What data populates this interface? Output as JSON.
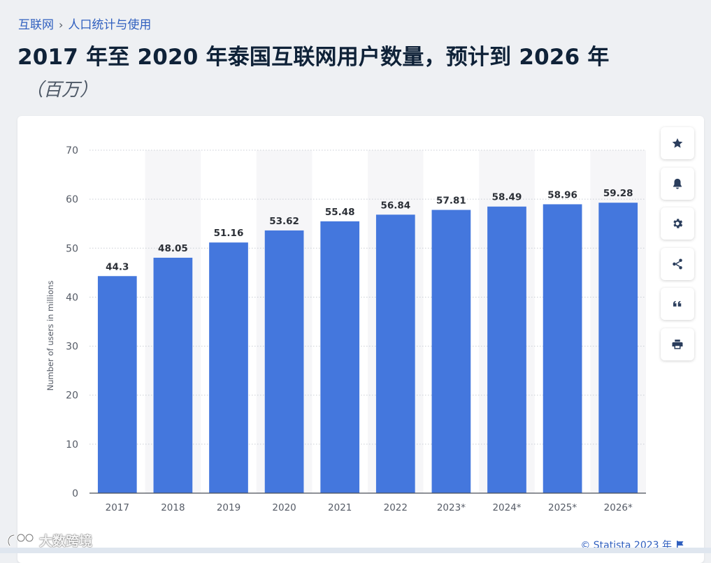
{
  "breadcrumb": {
    "items": [
      "互联网",
      "人口统计与使用"
    ],
    "separator": "›"
  },
  "header": {
    "title": "2017 年至 2020 年泰国互联网用户数量，预计到 2026 年",
    "subtitle": "（百万）"
  },
  "toolbar": {
    "buttons": [
      {
        "name": "favorite",
        "icon": "star-icon"
      },
      {
        "name": "notification",
        "icon": "bell-icon"
      },
      {
        "name": "settings",
        "icon": "gear-icon"
      },
      {
        "name": "share",
        "icon": "share-icon"
      },
      {
        "name": "cite",
        "icon": "quote-icon"
      },
      {
        "name": "print",
        "icon": "print-icon"
      }
    ]
  },
  "credit": {
    "text": "© Statista 2023 年",
    "icon": "flag-icon"
  },
  "watermark": {
    "text": "大数跨境"
  },
  "colors": {
    "bar": "#4477dd",
    "band": "#f6f6f8",
    "grid": "#c9cdd4",
    "axis_text": "#555b66",
    "label_text": "#2b2f36",
    "link": "#2f5fbf"
  },
  "chart_data": {
    "type": "bar",
    "title": "2017 年至 2020 年泰国互联网用户数量，预计到 2026 年",
    "subtitle": "（百万）",
    "categories": [
      "2017",
      "2018",
      "2019",
      "2020",
      "2021",
      "2022",
      "2023*",
      "2024*",
      "2025*",
      "2026*"
    ],
    "values": [
      44.3,
      48.05,
      51.16,
      53.62,
      55.48,
      56.84,
      57.81,
      58.49,
      58.96,
      59.28
    ],
    "value_labels": [
      "44.3",
      "48.05",
      "51.16",
      "53.62",
      "55.48",
      "56.84",
      "57.81",
      "58.49",
      "58.96",
      "59.28"
    ],
    "xlabel": "",
    "ylabel": "Number of users in millions",
    "ylim": [
      0,
      70
    ],
    "yticks": [
      0,
      10,
      20,
      30,
      40,
      50,
      60,
      70
    ],
    "grid": true,
    "legend": "none"
  }
}
